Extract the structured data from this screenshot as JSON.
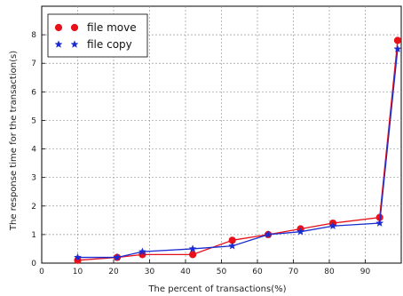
{
  "chart_data": {
    "type": "line",
    "title": "",
    "xlabel": "The percent of transactions(%)",
    "ylabel": "The response time for the transaction(s)",
    "xlim": [
      0,
      100
    ],
    "ylim": [
      0,
      9
    ],
    "xticks": [
      0,
      10,
      20,
      30,
      40,
      50,
      60,
      70,
      80,
      90
    ],
    "yticks": [
      0,
      1,
      2,
      3,
      4,
      5,
      6,
      7,
      8
    ],
    "grid": true,
    "legend_position": "top-left",
    "series": [
      {
        "name": "file move",
        "color": "#e8101a",
        "marker": "circle",
        "x": [
          10,
          21,
          28,
          42,
          53,
          63,
          72,
          81,
          94,
          99
        ],
        "y": [
          0.1,
          0.2,
          0.3,
          0.3,
          0.8,
          1.0,
          1.2,
          1.4,
          1.6,
          7.8
        ]
      },
      {
        "name": "file copy",
        "color": "#1a2bd0",
        "marker": "star",
        "x": [
          10,
          21,
          28,
          42,
          53,
          63,
          72,
          81,
          94,
          99
        ],
        "y": [
          0.2,
          0.2,
          0.4,
          0.5,
          0.6,
          1.0,
          1.1,
          1.3,
          1.4,
          7.5
        ]
      }
    ]
  }
}
